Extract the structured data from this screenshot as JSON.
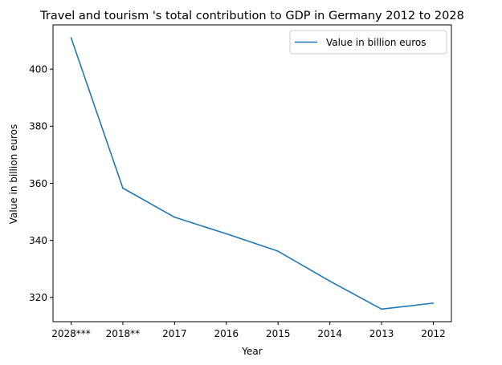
{
  "chart_data": {
    "type": "line",
    "title": "Travel and tourism 's total contribution to GDP in Germany 2012 to 2028",
    "xlabel": "Year",
    "ylabel": "Value in billion euros",
    "categories": [
      "2028***",
      "2018**",
      "2017",
      "2016",
      "2015",
      "2014",
      "2013",
      "2012"
    ],
    "series": [
      {
        "name": "Value in billion euros",
        "color": "#1f77b4",
        "values": [
          411.0,
          358.3,
          348.1,
          342.3,
          336.2,
          325.7,
          315.9,
          318.0
        ]
      }
    ],
    "yticks": [
      320,
      340,
      360,
      380,
      400
    ],
    "ylim": [
      311.5,
      415.5
    ],
    "grid": false,
    "legend_position": "top-right"
  }
}
